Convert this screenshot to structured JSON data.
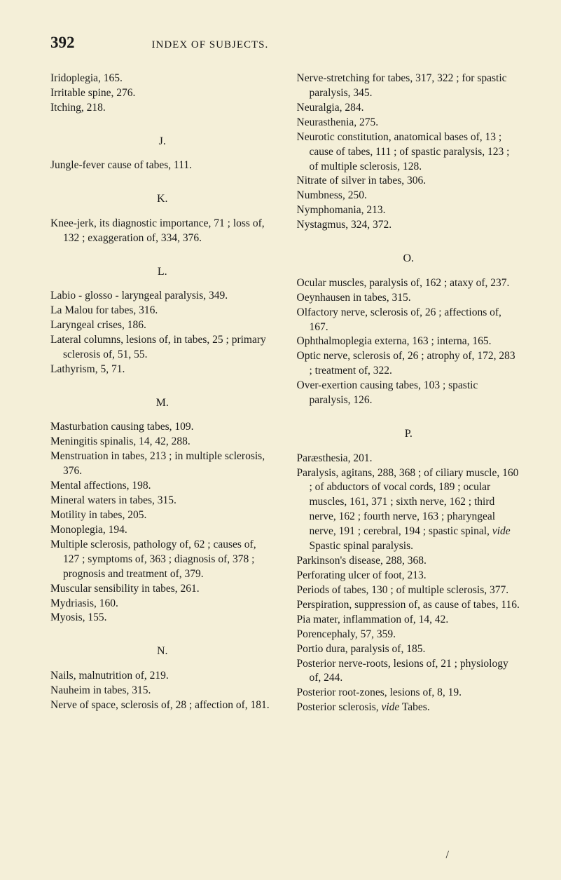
{
  "pageNumber": "392",
  "headerTitle": "INDEX OF SUBJECTS.",
  "leftCol": {
    "initialEntries": [
      "Iridoplegia, 165.",
      "Irritable spine, 276.",
      "Itching, 218."
    ],
    "J": {
      "head": "J.",
      "entries": [
        "Jungle-fever cause of tabes, 111."
      ]
    },
    "K": {
      "head": "K.",
      "entries": [
        "Knee-jerk, its diagnostic importance, 71 ; loss of, 132 ; exaggeration of, 334, 376."
      ]
    },
    "L": {
      "head": "L.",
      "entries": [
        "Labio - glosso - laryngeal paralysis, 349.",
        "La Malou for tabes, 316.",
        "Laryngeal crises, 186.",
        "Lateral columns, lesions of, in tabes, 25 ; primary sclerosis of, 51, 55.",
        "Lathyrism, 5, 71."
      ]
    },
    "M": {
      "head": "M.",
      "entries": [
        "Masturbation causing tabes, 109.",
        "Meningitis spinalis, 14, 42, 288.",
        "Menstruation in tabes, 213 ; in multiple sclerosis, 376.",
        "Mental affections, 198.",
        "Mineral waters in tabes, 315.",
        "Motility in tabes, 205.",
        "Monoplegia, 194.",
        "Multiple sclerosis, pathology of, 62 ; causes of, 127 ; symptoms of, 363 ; diagnosis of, 378 ; prognosis and treatment of, 379.",
        "Muscular sensibility in tabes, 261.",
        "Mydriasis, 160.",
        "Myosis, 155."
      ]
    },
    "N": {
      "head": "N.",
      "entries": [
        "Nails, malnutrition of, 219.",
        "Nauheim in tabes, 315.",
        "Nerve of space, sclerosis of, 28 ; affection of, 181."
      ]
    }
  },
  "rightCol": {
    "initialEntries": [
      "Nerve-stretching for tabes, 317, 322 ; for spastic paralysis, 345.",
      "Neuralgia, 284.",
      "Neurasthenia, 275.",
      "Neurotic constitution, anatomical bases of, 13 ; cause of tabes, 111 ; of spastic paralysis, 123 ; of multiple sclerosis, 128.",
      "Nitrate of silver in tabes, 306.",
      "Numbness, 250.",
      "Nymphomania, 213.",
      "Nystagmus, 324, 372."
    ],
    "O": {
      "head": "O.",
      "entries": [
        "Ocular muscles, paralysis of, 162 ; ataxy of, 237.",
        "Oeynhausen in tabes, 315.",
        "Olfactory nerve, sclerosis of, 26 ; affections of, 167.",
        "Ophthalmoplegia externa, 163 ; interna, 165.",
        "Optic nerve, sclerosis of, 26 ; atrophy of, 172, 283 ; treatment of, 322.",
        "Over-exertion causing tabes, 103 ; spastic paralysis, 126."
      ]
    },
    "P": {
      "head": "P.",
      "entries": [
        "Paræsthesia, 201.",
        {
          "pre": "Paralysis, agitans, 288, 368 ; of ciliary muscle, 160 ; of abductors of vocal cords, 189 ; ocular muscles, 161, 371 ; sixth nerve, 162 ; third nerve, 162 ; fourth nerve, 163 ; pharyngeal nerve, 191 ; cerebral, 194 ; spastic spinal, ",
          "italic": "vide",
          "post": " Spastic spinal paralysis."
        },
        "Parkinson's disease, 288, 368.",
        "Perforating ulcer of foot, 213.",
        "Periods of tabes, 130 ; of multiple sclerosis, 377.",
        "Perspiration, suppression of, as cause of tabes, 116.",
        "Pia mater, inflammation of, 14, 42.",
        "Porencephaly, 57, 359.",
        "Portio dura, paralysis of, 185.",
        "Posterior nerve-roots, lesions of, 21 ; physiology of, 244.",
        "Posterior root-zones, lesions of, 8, 19.",
        {
          "pre": "Posterior sclerosis, ",
          "italic": "vide",
          "post": " Tabes."
        }
      ]
    }
  },
  "bottomMark": "/"
}
